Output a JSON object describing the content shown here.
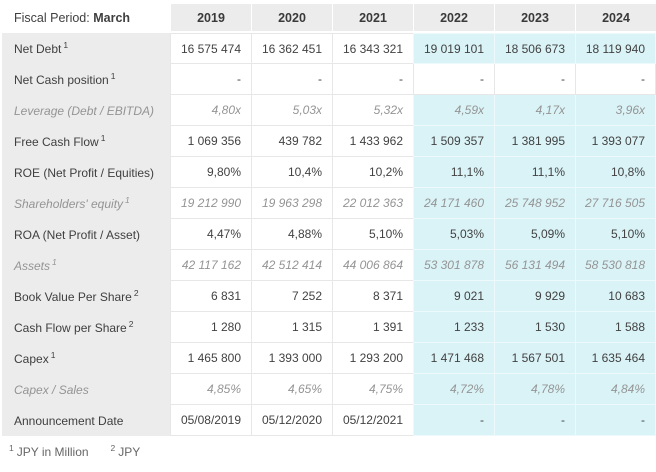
{
  "header": {
    "fiscal_period_label": "Fiscal Period:",
    "fiscal_period_value": "March",
    "years": [
      "2019",
      "2020",
      "2021",
      "2022",
      "2023",
      "2024"
    ],
    "estimate_year_count": 3
  },
  "rows": [
    {
      "label": "Net Debt",
      "sup": "1",
      "muted": false,
      "estimate_highlight": true,
      "values": [
        "16 575 474",
        "16 362 451",
        "16 343 321",
        "19 019 101",
        "18 506 673",
        "18 119 940"
      ]
    },
    {
      "label": "Net Cash position",
      "sup": "1",
      "muted": false,
      "estimate_highlight": false,
      "values": [
        "-",
        "-",
        "-",
        "-",
        "-",
        "-"
      ]
    },
    {
      "label": "Leverage (Debt / EBITDA)",
      "sup": null,
      "muted": true,
      "estimate_highlight": true,
      "values": [
        "4,80x",
        "5,03x",
        "5,32x",
        "4,59x",
        "4,17x",
        "3,96x"
      ]
    },
    {
      "label": "Free Cash Flow",
      "sup": "1",
      "muted": false,
      "estimate_highlight": true,
      "values": [
        "1 069 356",
        "439 782",
        "1 433 962",
        "1 509 357",
        "1 381 995",
        "1 393 077"
      ]
    },
    {
      "label": "ROE (Net Profit / Equities)",
      "sup": null,
      "muted": false,
      "estimate_highlight": true,
      "values": [
        "9,80%",
        "10,4%",
        "10,2%",
        "11,1%",
        "11,1%",
        "10,8%"
      ]
    },
    {
      "label": "Shareholders' equity",
      "sup": "1",
      "muted": true,
      "estimate_highlight": true,
      "values": [
        "19 212 990",
        "19 963 298",
        "22 012 363",
        "24 171 460",
        "25 748 952",
        "27 716 505"
      ]
    },
    {
      "label": "ROA (Net Profit / Asset)",
      "sup": null,
      "muted": false,
      "estimate_highlight": true,
      "values": [
        "4,47%",
        "4,88%",
        "5,10%",
        "5,03%",
        "5,09%",
        "5,10%"
      ]
    },
    {
      "label": "Assets",
      "sup": "1",
      "muted": true,
      "estimate_highlight": true,
      "values": [
        "42 117 162",
        "42 512 414",
        "44 006 864",
        "53 301 878",
        "56 131 494",
        "58 530 818"
      ]
    },
    {
      "label": "Book Value Per Share",
      "sup": "2",
      "muted": false,
      "estimate_highlight": true,
      "values": [
        "6 831",
        "7 252",
        "8 371",
        "9 021",
        "9 929",
        "10 683"
      ]
    },
    {
      "label": "Cash Flow per Share",
      "sup": "2",
      "muted": false,
      "estimate_highlight": true,
      "values": [
        "1 280",
        "1 315",
        "1 391",
        "1 233",
        "1 530",
        "1 588"
      ]
    },
    {
      "label": "Capex",
      "sup": "1",
      "muted": false,
      "estimate_highlight": true,
      "values": [
        "1 465 800",
        "1 393 000",
        "1 293 200",
        "1 471 468",
        "1 567 501",
        "1 635 464"
      ]
    },
    {
      "label": "Capex / Sales",
      "sup": null,
      "muted": true,
      "estimate_highlight": true,
      "values": [
        "4,85%",
        "4,65%",
        "4,75%",
        "4,72%",
        "4,78%",
        "4,84%"
      ]
    },
    {
      "label": "Announcement Date",
      "sup": null,
      "muted": false,
      "estimate_highlight": true,
      "values": [
        "05/08/2019",
        "05/12/2020",
        "05/12/2021",
        "-",
        "-",
        "-"
      ]
    }
  ],
  "footnotes": [
    {
      "sup": "1",
      "text": "JPY in Million"
    },
    {
      "sup": "2",
      "text": "JPY"
    }
  ],
  "layout": {
    "label_col_width": 168,
    "year_col_width": 81
  },
  "colors": {
    "panel": "#ececec",
    "est": "#daf3f7",
    "dark": "#424242",
    "muted": "#949494",
    "border": "#e7e7e7",
    "est-border": "#eef9fb",
    "foot": "#666666"
  }
}
